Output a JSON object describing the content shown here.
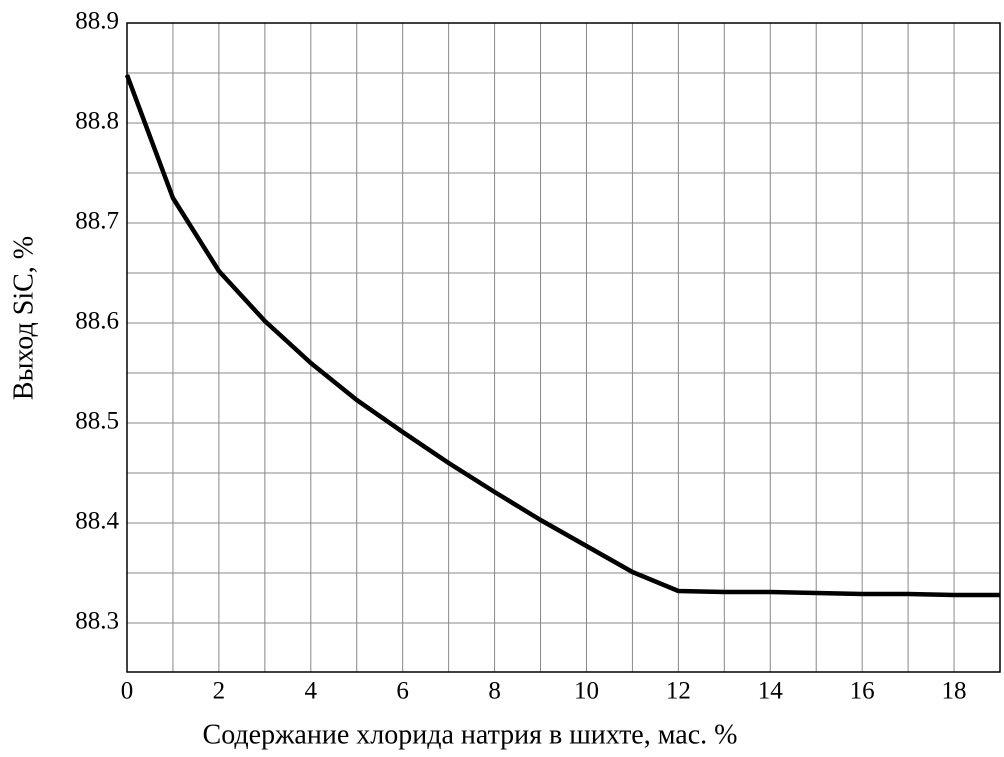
{
  "chart_data": {
    "type": "line",
    "x_label": "Содержание хлорида натрия в шихте,  мас. %",
    "y_label": "Выход SiC, %",
    "x": [
      0,
      1,
      2,
      3,
      4,
      5,
      6,
      7,
      8,
      9,
      10,
      11,
      12,
      13,
      14,
      15,
      16,
      17,
      18,
      19
    ],
    "series": [
      {
        "color": "#000000",
        "values": [
          88.848,
          88.725,
          88.652,
          88.602,
          88.56,
          88.523,
          88.491,
          88.46,
          88.431,
          88.403,
          88.377,
          88.351,
          88.332,
          88.331,
          88.331,
          88.33,
          88.329,
          88.329,
          88.328,
          88.328
        ]
      }
    ],
    "xlim": [
      0,
      19
    ],
    "ylim": [
      88.251,
      88.9
    ],
    "xticks": [
      0,
      2,
      4,
      6,
      8,
      10,
      12,
      14,
      16,
      18
    ],
    "yticks": [
      88.3,
      88.4,
      88.5,
      88.6,
      88.7,
      88.8,
      88.9
    ],
    "xminorticks": [
      1,
      3,
      5,
      7,
      9,
      11,
      13,
      15,
      17
    ],
    "yminorticks": [
      88.35,
      88.45,
      88.55,
      88.65,
      88.75,
      88.85
    ],
    "grid": true
  }
}
